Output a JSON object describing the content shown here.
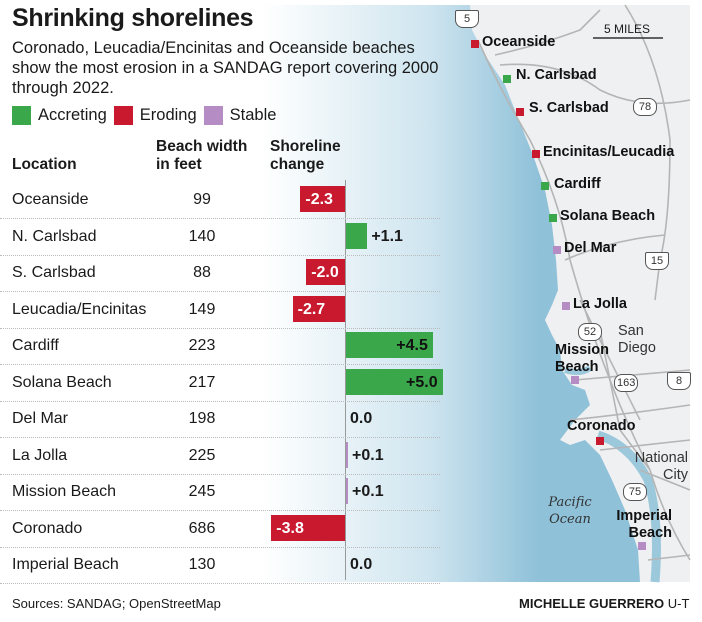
{
  "title": "Shrinking shorelines",
  "subtitle": "Coronado, Leucadia/Encinitas and Oceanside beaches show the most erosion in a SANDAG report covering 2000 through 2022.",
  "legend": [
    {
      "label": "Accreting",
      "color": "#3aa84a"
    },
    {
      "label": "Eroding",
      "color": "#c8192e"
    },
    {
      "label": "Stable",
      "color": "#b58cc4"
    }
  ],
  "headers": {
    "location": "Location",
    "width": "Beach width in feet",
    "change": "Shoreline change"
  },
  "chart_data": {
    "type": "table",
    "title": "Shrinking shorelines",
    "columns": [
      "Location",
      "Beach width in feet",
      "Shoreline change"
    ],
    "rows": [
      {
        "location": "Oceanside",
        "width": "99",
        "change": -2.3,
        "label": "-2.3",
        "status": "Eroding"
      },
      {
        "location": "N. Carlsbad",
        "width": "140",
        "change": 1.1,
        "label": "+1.1",
        "status": "Accreting"
      },
      {
        "location": "S. Carlsbad",
        "width": "88",
        "change": -2.0,
        "label": "-2.0",
        "status": "Eroding"
      },
      {
        "location": "Leucadia/Encinitas",
        "width": "149",
        "change": -2.7,
        "label": "-2.7",
        "status": "Eroding"
      },
      {
        "location": "Cardiff",
        "width": "223",
        "change": 4.5,
        "label": "+4.5",
        "status": "Accreting"
      },
      {
        "location": "Solana Beach",
        "width": "217",
        "change": 5.0,
        "label": "+5.0",
        "status": "Accreting"
      },
      {
        "location": "Del Mar",
        "width": "198",
        "change": 0.0,
        "label": "0.0",
        "status": "Stable"
      },
      {
        "location": "La Jolla",
        "width": "225",
        "change": 0.1,
        "label": "+0.1",
        "status": "Stable"
      },
      {
        "location": "Mission Beach",
        "width": "245",
        "change": 0.1,
        "label": "+0.1",
        "status": "Stable"
      },
      {
        "location": "Coronado",
        "width": "686",
        "change": -3.8,
        "label": "-3.8",
        "status": "Eroding"
      },
      {
        "location": "Imperial Beach",
        "width": "130",
        "change": 0.0,
        "label": "0.0",
        "status": "Stable"
      }
    ]
  },
  "map": {
    "scale": "5 MILES",
    "places": [
      "Oceanside",
      "N. Carlsbad",
      "S. Carlsbad",
      "Encinitas/Leucadia",
      "Cardiff",
      "Solana Beach",
      "Del Mar",
      "La Jolla",
      "Mission Beach",
      "Coronado",
      "Imperial Beach"
    ],
    "cities": [
      "San Diego",
      "National City"
    ],
    "ocean": "Pacific Ocean",
    "highways": [
      "5",
      "78",
      "15",
      "52",
      "163",
      "8",
      "75"
    ]
  },
  "footer": {
    "sources": "Sources: SANDAG; OpenStreetMap",
    "credit": "MICHELLE GUERRERO",
    "org": "U-T"
  }
}
